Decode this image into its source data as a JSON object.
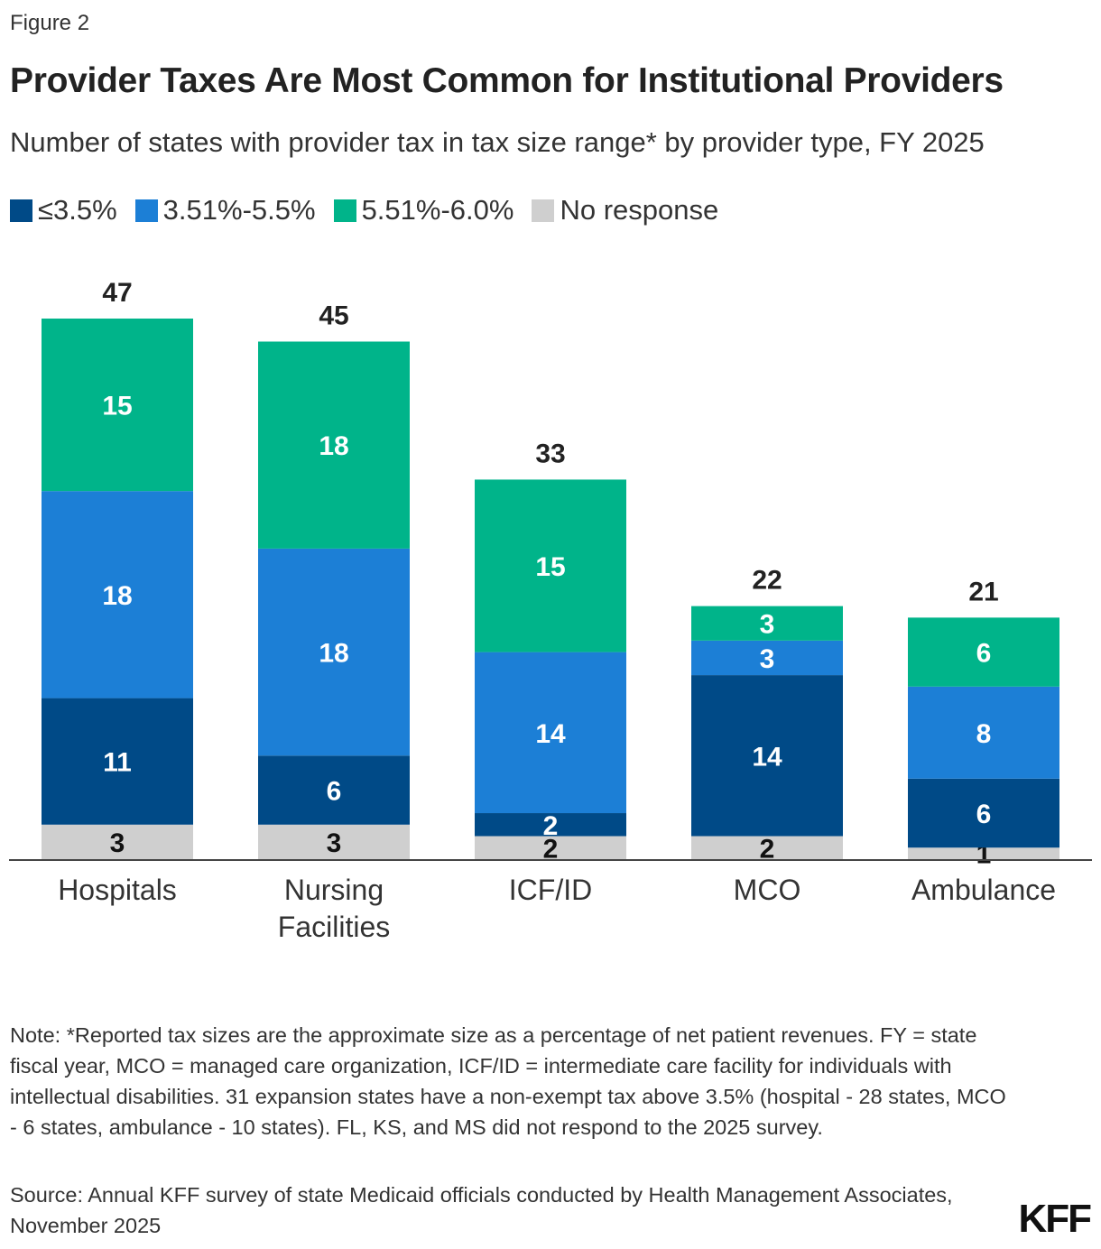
{
  "figure_label": "Figure 2",
  "logo": "KFF",
  "note": "Note: *Reported tax sizes are the approximate size as a percentage of net patient revenues. FY = state fiscal year, MCO = managed care organization, ICF/ID = intermediate care facility for individuals with intellectual disabilities. 31 expansion states have a non-exempt tax above 3.5% (hospital - 28 states, MCO - 6 states, ambulance - 10 states). FL, KS, and MS did not respond to the 2025 survey.",
  "source": "Source: Annual KFF survey of state Medicaid officials conducted by Health Management Associates, November 2025",
  "chart_data": {
    "type": "bar",
    "stacked": true,
    "title": "Provider Taxes Are Most Common for Institutional Providers",
    "subtitle": "Number of states with provider tax in tax size range* by provider type, FY 2025",
    "categories": [
      "Hospitals",
      "Nursing Facilities",
      "ICF/ID",
      "MCO",
      "Ambulance"
    ],
    "series": [
      {
        "name": "No response",
        "color": "#cfcfcf",
        "values": [
          3,
          3,
          2,
          2,
          1
        ]
      },
      {
        "name": "≤3.5%",
        "color": "#004a87",
        "values": [
          11,
          6,
          2,
          14,
          6
        ]
      },
      {
        "name": "3.51%-5.5%",
        "color": "#1c7fd6",
        "values": [
          18,
          18,
          14,
          3,
          8
        ]
      },
      {
        "name": "5.51%-6.0%",
        "color": "#00b48a",
        "values": [
          15,
          18,
          15,
          3,
          6
        ]
      }
    ],
    "totals": [
      47,
      45,
      33,
      22,
      21
    ],
    "legend_order": [
      "≤3.5%",
      "3.51%-5.5%",
      "5.51%-6.0%",
      "No response"
    ],
    "legend_position": "top-left",
    "ylim": [
      0,
      47
    ],
    "grid": false,
    "y_axis_shown": false
  }
}
